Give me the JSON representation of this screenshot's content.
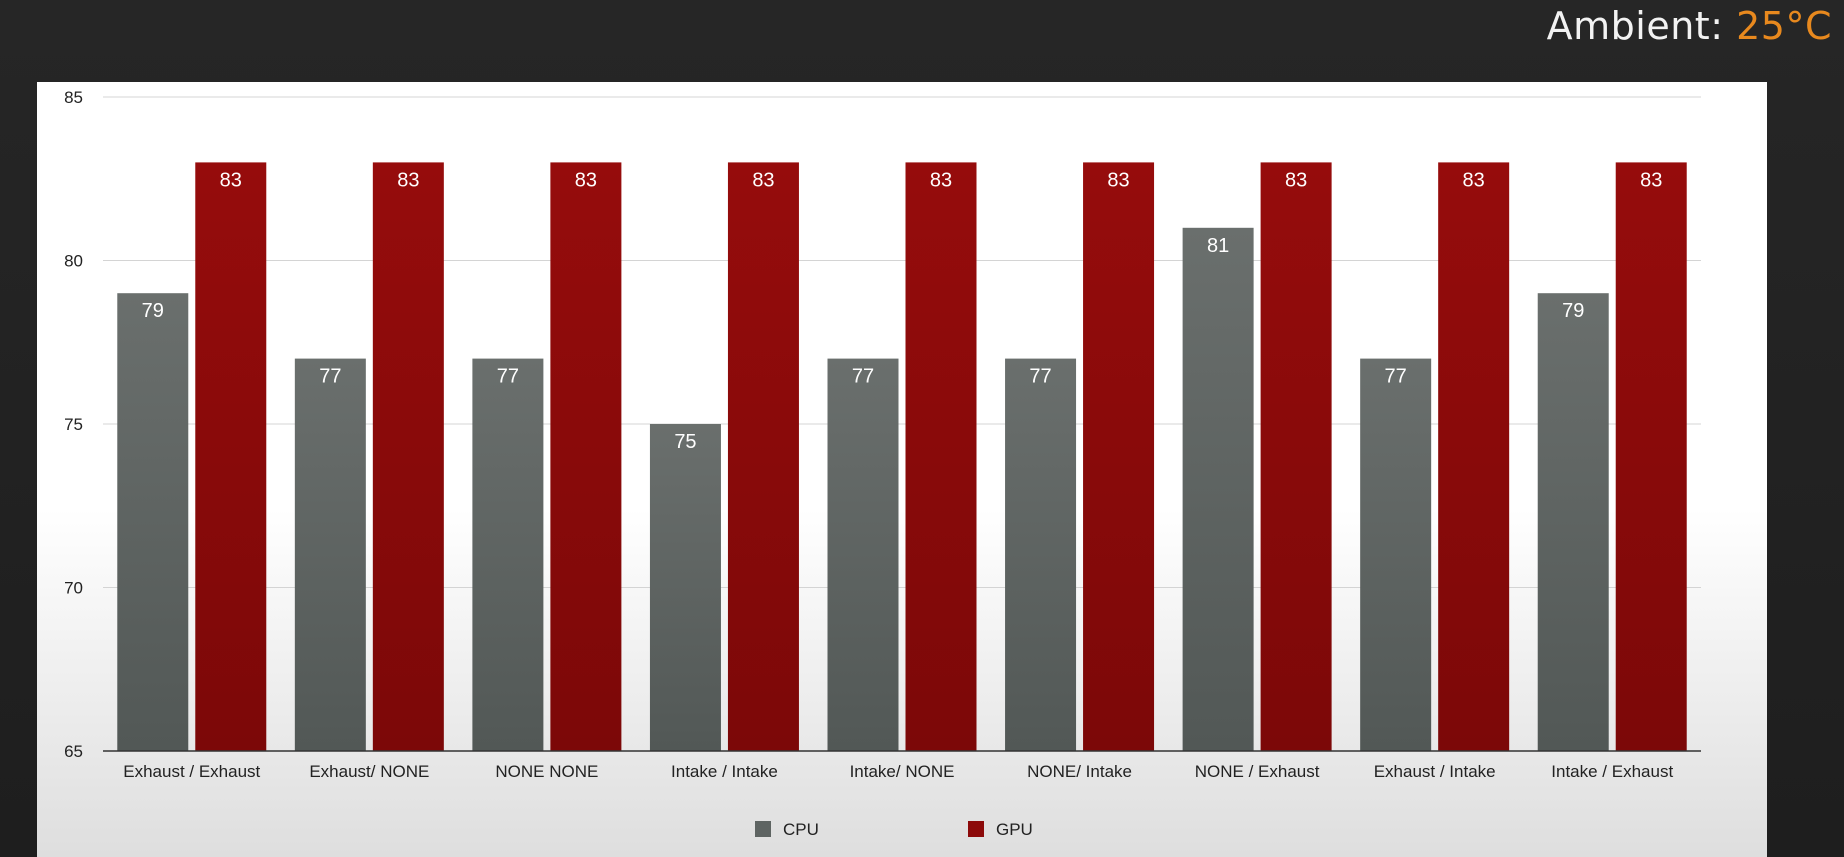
{
  "header": {
    "ambient_label": "Ambient:",
    "ambient_value": "25°C"
  },
  "chart_data": {
    "type": "bar",
    "title": "",
    "xlabel": "",
    "ylabel": "",
    "ylim": [
      65,
      85
    ],
    "yticks": [
      65,
      70,
      75,
      80,
      85
    ],
    "grid": true,
    "legend_position": "bottom",
    "categories": [
      "Exhaust / Exhaust",
      "Exhaust/ NONE",
      "NONE NONE",
      "Intake / Intake",
      "Intake/ NONE",
      "NONE/ Intake",
      "NONE / Exhaust",
      "Exhaust / Intake",
      "Intake / Exhaust"
    ],
    "series": [
      {
        "name": "CPU",
        "color": "#5e6462",
        "values": [
          79,
          77,
          77,
          75,
          77,
          77,
          81,
          77,
          79
        ]
      },
      {
        "name": "GPU",
        "color": "#8c0a0a",
        "values": [
          83,
          83,
          83,
          83,
          83,
          83,
          83,
          83,
          83
        ]
      }
    ]
  }
}
